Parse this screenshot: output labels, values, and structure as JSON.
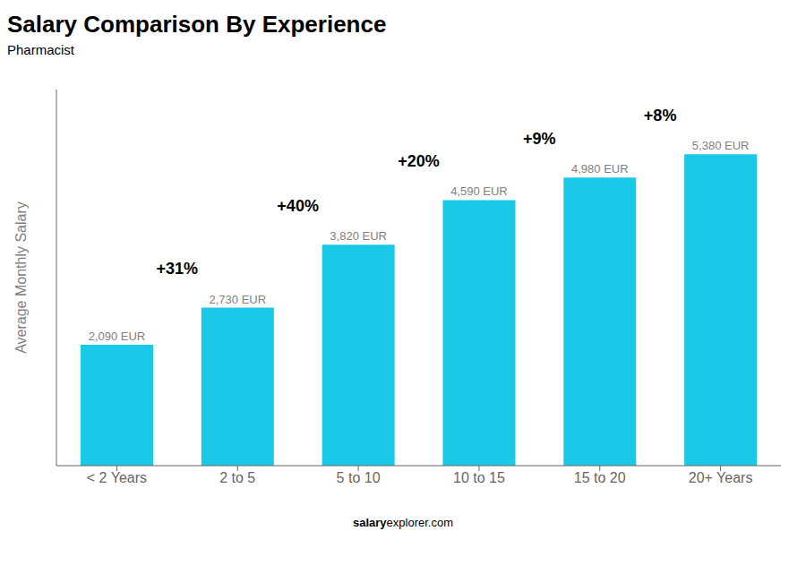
{
  "chart_data": {
    "type": "bar",
    "title": "Salary Comparison By Experience",
    "subtitle": "Pharmacist",
    "categories": [
      "< 2 Years",
      "2 to 5",
      "5 to 10",
      "10 to 15",
      "15 to 20",
      "20+ Years"
    ],
    "values": [
      2090,
      2730,
      3820,
      4590,
      4980,
      5380
    ],
    "value_labels": [
      "2,090 EUR",
      "2,730 EUR",
      "3,820 EUR",
      "4,590 EUR",
      "4,980 EUR",
      "5,380 EUR"
    ],
    "data_labels": true,
    "annotations": [
      null,
      "+31%",
      "+40%",
      "+20%",
      "+9%",
      "+8%"
    ],
    "ylabel": "Average Monthly Salary",
    "footer": [
      "salary",
      "explorer.com"
    ],
    "color": "#1ac8e8",
    "ylim": [
      0,
      6500
    ],
    "tick_labels": "x",
    "grid": false
  }
}
